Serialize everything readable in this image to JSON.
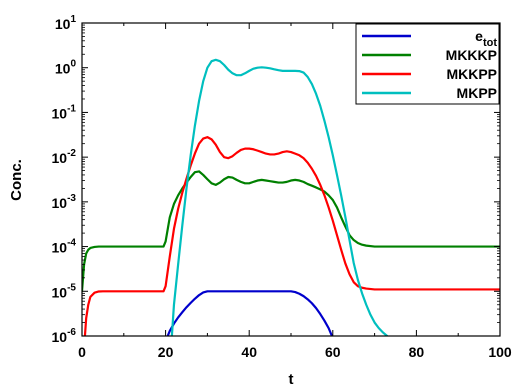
{
  "chart_data": {
    "type": "line",
    "xlabel": "t",
    "ylabel": "Conc.",
    "xlim": [
      0,
      100
    ],
    "ylim": [
      1e-06,
      10
    ],
    "yscale": "log",
    "grid": false,
    "legend_placement": "top-right",
    "x_ticks": [
      "0",
      "20",
      "40",
      "60",
      "80",
      "100"
    ],
    "y_ticks": [
      {
        "base": "10",
        "exp": "-6"
      },
      {
        "base": "10",
        "exp": "-5"
      },
      {
        "base": "10",
        "exp": "-4"
      },
      {
        "base": "10",
        "exp": "-3"
      },
      {
        "base": "10",
        "exp": "-2"
      },
      {
        "base": "10",
        "exp": "-1"
      },
      {
        "base": "10",
        "exp": "0"
      },
      {
        "base": "10",
        "exp": "1"
      }
    ],
    "series": [
      {
        "name": "e",
        "name_sub": "tot",
        "color": "#0000cc",
        "x": [
          20.5,
          21,
          22,
          23,
          24,
          25,
          26,
          27,
          28,
          29,
          30,
          35,
          40,
          45,
          50,
          51,
          52,
          53,
          54,
          55,
          56,
          57,
          58,
          59,
          59.8
        ],
        "y": [
          1e-06,
          1.3e-06,
          1.9e-06,
          2.6e-06,
          3.4e-06,
          4.4e-06,
          5.5e-06,
          6.8e-06,
          8.2e-06,
          9.4e-06,
          1e-05,
          1e-05,
          1e-05,
          1e-05,
          1e-05,
          9.6e-06,
          8.8e-06,
          7.8e-06,
          6.6e-06,
          5.4e-06,
          4.2e-06,
          3.1e-06,
          2.2e-06,
          1.5e-06,
          1e-06
        ]
      },
      {
        "name": "MKKKP",
        "color": "#008000",
        "x": [
          0,
          0.5,
          1,
          1.5,
          2,
          3,
          4,
          5,
          10,
          15,
          19.5,
          20,
          21,
          22,
          23,
          24,
          25,
          26,
          27,
          28,
          29,
          30,
          31,
          32,
          33,
          34,
          35,
          36,
          37,
          38,
          39,
          40,
          41,
          42,
          43,
          44,
          45,
          46,
          47,
          48,
          49,
          50,
          51,
          52,
          53,
          54,
          55,
          56,
          57,
          58,
          59,
          60,
          61,
          62,
          63,
          64,
          65,
          66,
          67,
          68,
          70,
          75,
          80,
          90,
          100
        ],
        "y": [
          1e-05,
          4e-05,
          7e-05,
          8.5e-05,
          9.3e-05,
          9.8e-05,
          0.0001,
          0.0001,
          0.0001,
          0.0001,
          0.0001,
          0.00013,
          0.00045,
          0.0009,
          0.0014,
          0.002,
          0.0027,
          0.0036,
          0.0046,
          0.0048,
          0.004,
          0.0032,
          0.0026,
          0.0024,
          0.0027,
          0.0032,
          0.0036,
          0.0035,
          0.0031,
          0.0028,
          0.0026,
          0.0026,
          0.0028,
          0.003,
          0.0031,
          0.003,
          0.0029,
          0.0028,
          0.0027,
          0.0027,
          0.0028,
          0.003,
          0.0031,
          0.003,
          0.0028,
          0.0025,
          0.0023,
          0.0021,
          0.0019,
          0.0017,
          0.0014,
          0.0011,
          0.00075,
          0.00045,
          0.00028,
          0.00018,
          0.00014,
          0.00012,
          0.00011,
          0.000105,
          0.0001,
          0.0001,
          0.0001,
          0.0001,
          0.0001
        ]
      },
      {
        "name": "MKKPP",
        "color": "#ff0000",
        "x": [
          0.7,
          1,
          1.5,
          2,
          3,
          4,
          5,
          10,
          15,
          19.5,
          20,
          21,
          22,
          23,
          24,
          25,
          26,
          27,
          28,
          29,
          30,
          31,
          32,
          33,
          34,
          35,
          36,
          37,
          38,
          39,
          40,
          41,
          42,
          43,
          44,
          45,
          46,
          47,
          48,
          49,
          50,
          51,
          52,
          53,
          54,
          55,
          56,
          57,
          58,
          59,
          60,
          61,
          62,
          63,
          64,
          65,
          66,
          67,
          68,
          70,
          75,
          80,
          90,
          100
        ],
        "y": [
          1e-06,
          2.5e-06,
          5e-06,
          7.5e-06,
          9.3e-06,
          9.9e-06,
          1e-05,
          1e-05,
          1e-05,
          1e-05,
          1.3e-05,
          6e-05,
          0.00025,
          0.0007,
          0.0016,
          0.0033,
          0.0065,
          0.012,
          0.02,
          0.026,
          0.028,
          0.025,
          0.019,
          0.013,
          0.01,
          0.0095,
          0.0105,
          0.0125,
          0.0145,
          0.0155,
          0.0155,
          0.015,
          0.014,
          0.013,
          0.012,
          0.0115,
          0.0115,
          0.012,
          0.013,
          0.0135,
          0.013,
          0.012,
          0.011,
          0.0095,
          0.0075,
          0.0055,
          0.0038,
          0.0024,
          0.0014,
          0.00075,
          0.00038,
          0.00018,
          8.5e-05,
          4.2e-05,
          2.4e-05,
          1.6e-05,
          1.3e-05,
          1.2e-05,
          1.15e-05,
          1.1e-05,
          1.1e-05,
          1.1e-05,
          1.1e-05,
          1.1e-05
        ]
      },
      {
        "name": "MKPP",
        "color": "#00bfbf",
        "x": [
          21.5,
          22,
          23,
          24,
          25,
          26,
          27,
          28,
          29,
          30,
          31,
          32,
          33,
          34,
          35,
          36,
          37,
          38,
          39,
          40,
          41,
          42,
          43,
          44,
          45,
          46,
          47,
          48,
          49,
          50,
          51,
          52,
          53,
          54,
          55,
          56,
          57,
          58,
          59,
          60,
          61,
          62,
          63,
          64,
          65,
          66,
          67,
          68,
          69,
          70,
          71,
          72,
          73
        ],
        "y": [
          1e-06,
          5e-06,
          4e-05,
          0.0003,
          0.002,
          0.011,
          0.05,
          0.18,
          0.5,
          1.0,
          1.4,
          1.5,
          1.4,
          1.15,
          0.9,
          0.75,
          0.68,
          0.68,
          0.75,
          0.85,
          0.95,
          1.0,
          1.02,
          1.0,
          0.97,
          0.92,
          0.88,
          0.85,
          0.85,
          0.85,
          0.85,
          0.84,
          0.78,
          0.62,
          0.43,
          0.26,
          0.14,
          0.065,
          0.028,
          0.011,
          0.004,
          0.0014,
          0.00046,
          0.00014,
          4.3e-05,
          1.8e-05,
          9e-06,
          5e-06,
          3e-06,
          2e-06,
          1.5e-06,
          1.2e-06,
          1e-06
        ]
      }
    ]
  }
}
